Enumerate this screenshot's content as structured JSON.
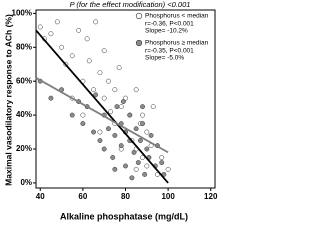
{
  "chart_data": {
    "type": "scatter",
    "title": "P (for the effect modification) <0.001",
    "x_label": "Alkaline phosphatase (mg/dL)",
    "y_label": "Maximal vasodilatory response to ACh (%)",
    "xlim": [
      38,
      122
    ],
    "xticks": [
      40,
      60,
      80,
      100,
      120
    ],
    "ylim": [
      -3,
      102
    ],
    "yticks": [
      {
        "value": 0,
        "label": "0%"
      },
      {
        "value": 20,
        "label": "20%"
      },
      {
        "value": 40,
        "label": "40%"
      },
      {
        "value": 60,
        "label": "60%"
      },
      {
        "value": 80,
        "label": "80%"
      },
      {
        "value": 100,
        "label": "100%"
      }
    ],
    "legend": "upper right",
    "series": [
      {
        "name": "Phosphorus < median",
        "stats": [
          "r=-0.36, P<0.001",
          "Slope= -10.2%"
        ],
        "color": "#ffffff",
        "line_color": "#000000",
        "x": [
          40,
          42,
          45,
          48,
          50,
          52,
          55,
          58,
          60,
          62,
          63,
          65,
          66,
          68,
          70,
          70,
          72,
          73,
          75,
          75,
          77,
          78,
          80,
          80,
          82,
          83,
          85,
          85,
          87,
          88,
          90,
          90,
          92,
          95,
          97,
          100,
          55,
          60,
          68,
          78,
          88,
          93,
          85
        ],
        "values": [
          92,
          85,
          88,
          95,
          80,
          70,
          75,
          90,
          60,
          85,
          72,
          55,
          95,
          65,
          50,
          78,
          60,
          42,
          55,
          35,
          68,
          45,
          50,
          30,
          40,
          25,
          55,
          20,
          35,
          15,
          30,
          10,
          22,
          5,
          15,
          8,
          50,
          40,
          30,
          20,
          40,
          45,
          8
        ],
        "fit": {
          "x": [
            38,
            100
          ],
          "y": [
            90,
            0
          ]
        }
      },
      {
        "name": "Phosphorus ≥ median",
        "stats": [
          "r=-0.35, P<0.001",
          "Slope= -5.0%"
        ],
        "color": "#8c8c8c",
        "line_color": "#7f7f7f",
        "x": [
          40,
          45,
          50,
          55,
          58,
          60,
          62,
          65,
          66,
          68,
          70,
          70,
          72,
          74,
          75,
          76,
          78,
          78,
          80,
          80,
          82,
          82,
          84,
          85,
          86,
          87,
          88,
          89,
          90,
          91,
          92,
          94,
          95,
          97,
          98,
          75,
          83,
          79,
          88
        ],
        "values": [
          60,
          50,
          55,
          40,
          48,
          35,
          45,
          30,
          52,
          25,
          40,
          20,
          32,
          15,
          28,
          45,
          22,
          35,
          10,
          30,
          25,
          40,
          18,
          32,
          12,
          25,
          35,
          5,
          20,
          15,
          28,
          10,
          22,
          12,
          5,
          8,
          3,
          48,
          45
        ],
        "fit": {
          "x": [
            38,
            100
          ],
          "y": [
            62,
            18
          ]
        }
      }
    ]
  }
}
